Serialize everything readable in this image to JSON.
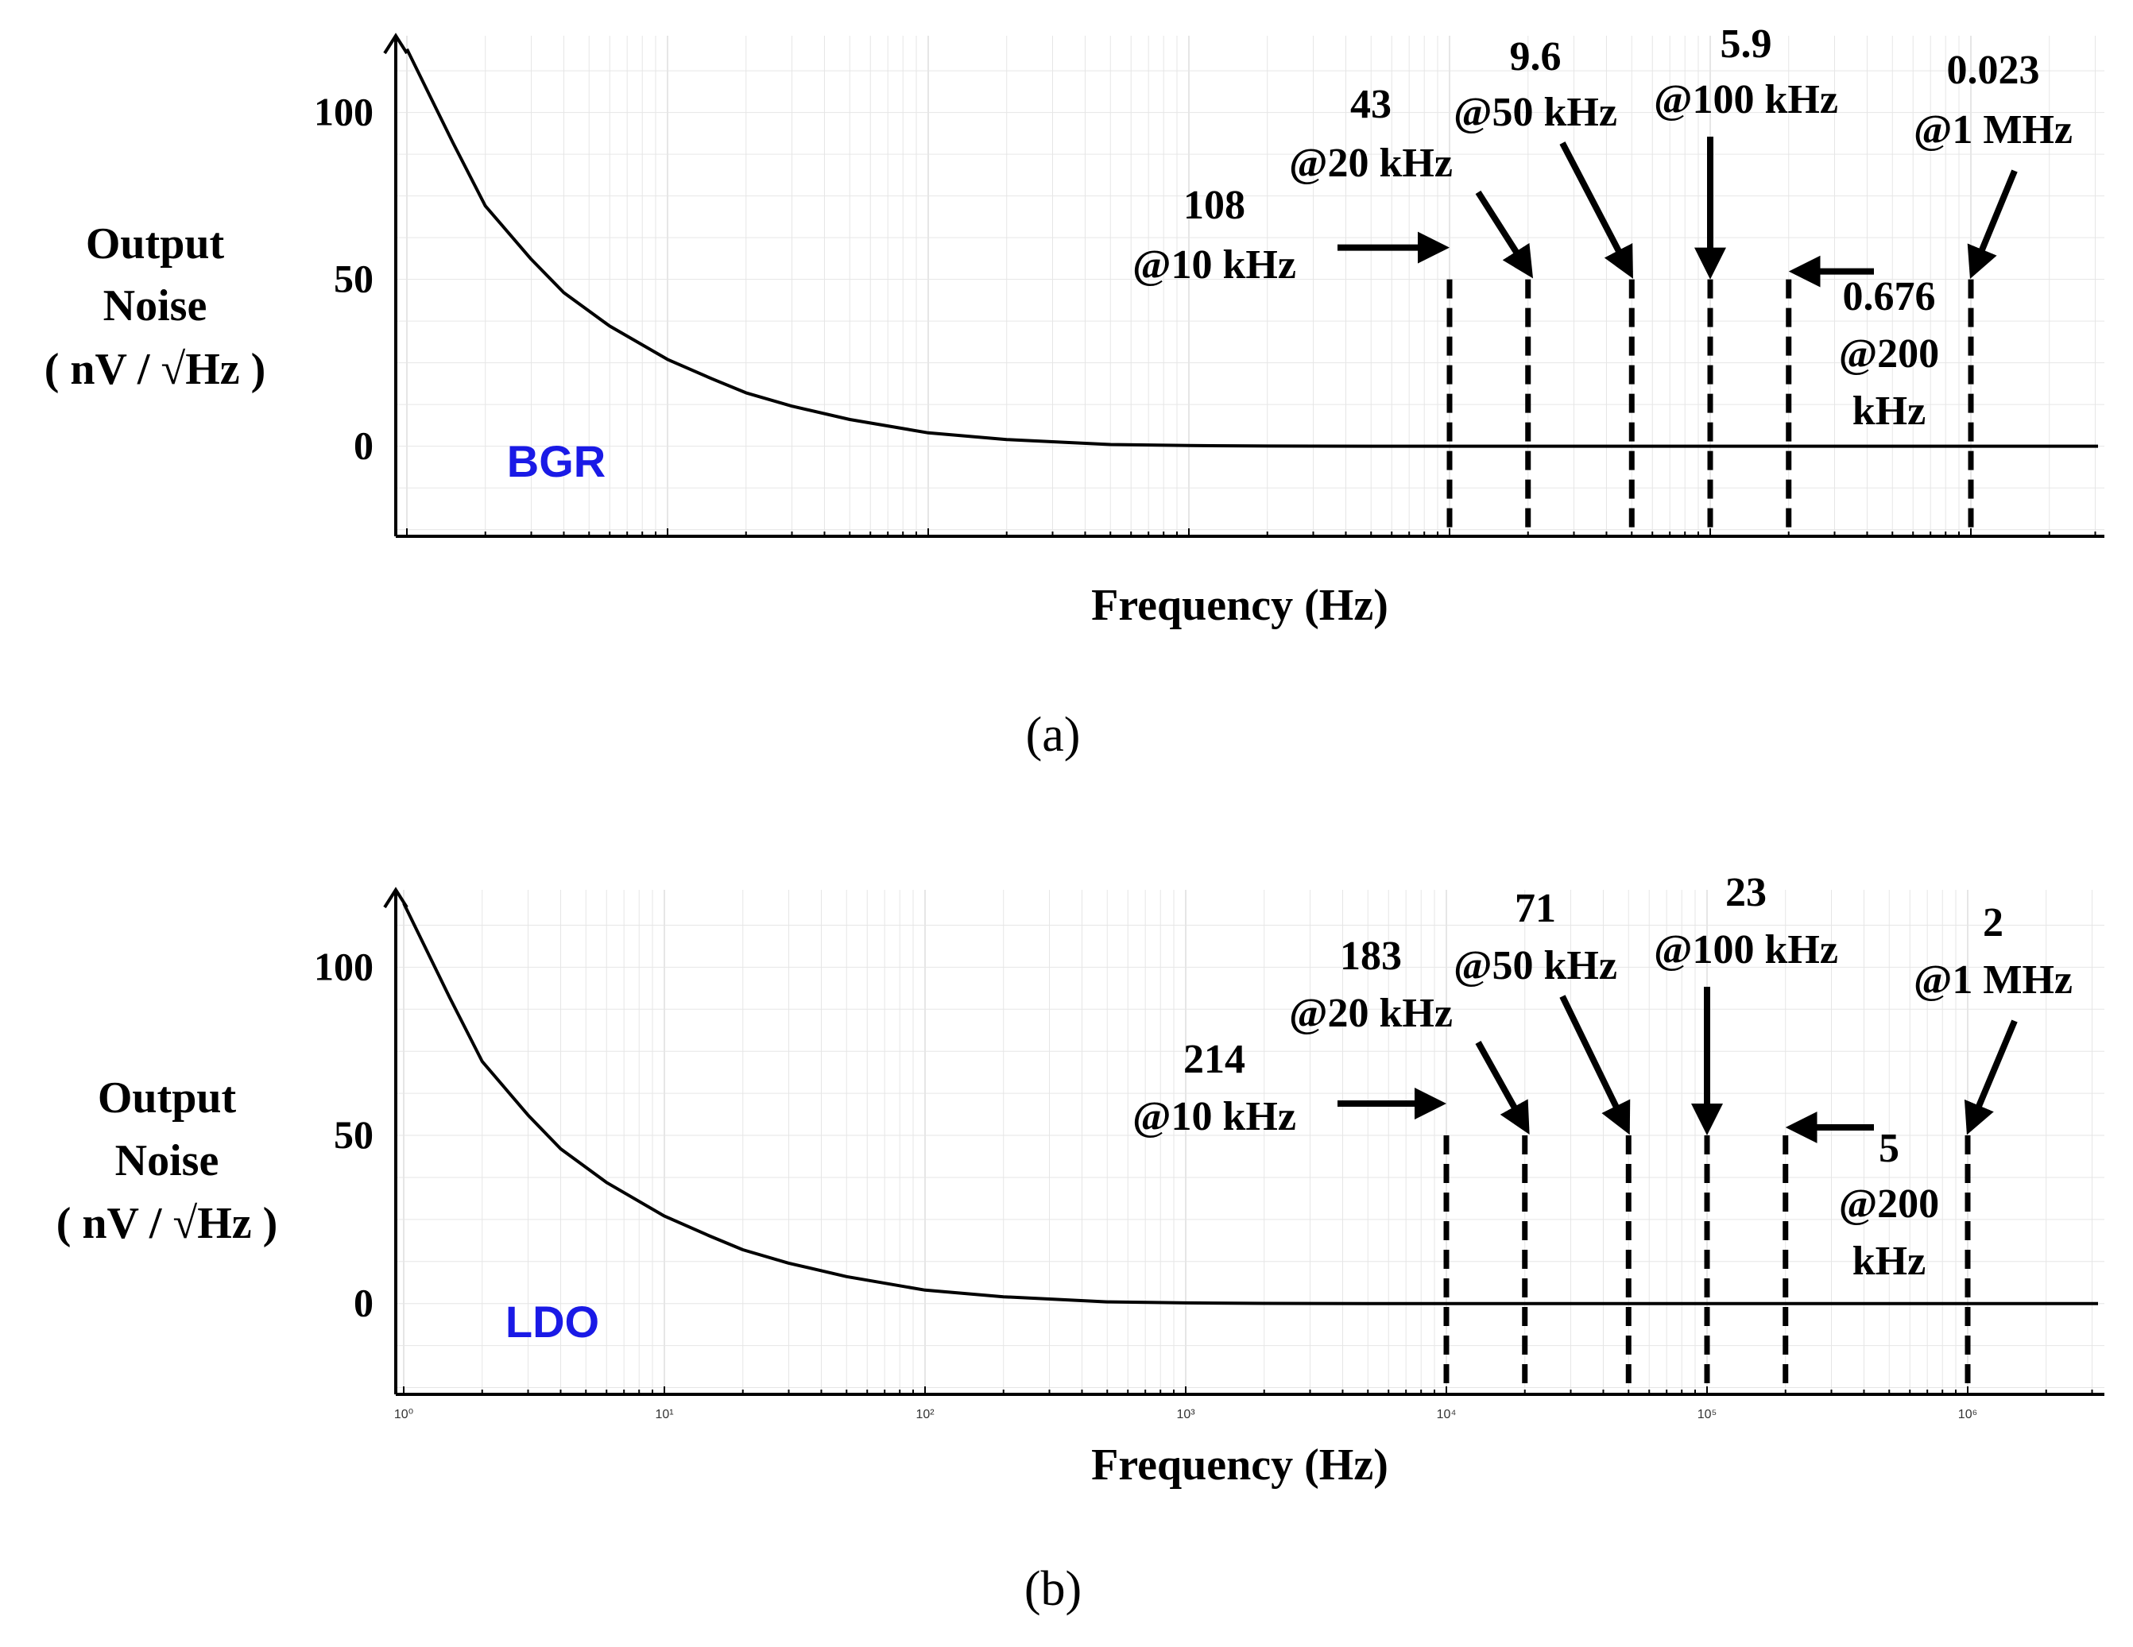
{
  "chart_data": [
    {
      "type": "line",
      "panel_label": "(a)",
      "badge": "BGR",
      "xlabel": "Frequency (Hz)",
      "ylabel_lines": [
        "Output",
        "Noise",
        "( nV / √Hz )"
      ],
      "x_scale": "log",
      "xlim": [
        1,
        10000000
      ],
      "ylim": [
        -27,
        123
      ],
      "yticks": [
        0,
        50,
        100
      ],
      "x_tick_labels": [],
      "grid": true,
      "series": [
        {
          "x": [
            1,
            1.5,
            2,
            3,
            4,
            6,
            10,
            15,
            20,
            30,
            50,
            100,
            200,
            500,
            1000,
            2000,
            5000,
            10000,
            10000000
          ],
          "y": [
            119,
            91,
            72,
            56,
            46,
            36,
            26,
            20,
            16,
            12,
            8,
            4,
            2,
            0.5,
            0.2,
            0.05,
            0.01,
            0,
            0
          ]
        }
      ],
      "markers": [
        {
          "freq": 10000,
          "value_label": "108",
          "freq_label": "@10 kHz"
        },
        {
          "freq": 20000,
          "value_label": "43",
          "freq_label": "@20 kHz"
        },
        {
          "freq": 50000,
          "value_label": "9.6",
          "freq_label": "@50 kHz"
        },
        {
          "freq": 100000,
          "value_label": "5.9",
          "freq_label": "@100 kHz"
        },
        {
          "freq": 200000,
          "value_label": "0.676",
          "freq_label": "@200",
          "freq_label_2": "kHz"
        },
        {
          "freq": 1000000,
          "value_label": "0.023",
          "freq_label": "@1 MHz"
        }
      ]
    },
    {
      "type": "line",
      "panel_label": "(b)",
      "badge": "LDO",
      "xlabel": "Frequency (Hz)",
      "ylabel_lines": [
        "Output",
        "Noise",
        "( nV / √Hz )"
      ],
      "x_scale": "log",
      "xlim": [
        1,
        10000000
      ],
      "ylim": [
        -27,
        123
      ],
      "yticks": [
        0,
        50,
        100
      ],
      "x_tick_labels": [
        "10⁰",
        "10¹",
        "10²",
        "10³",
        "10⁴",
        "10⁵",
        "10⁶"
      ],
      "grid": true,
      "series": [
        {
          "x": [
            1,
            1.5,
            2,
            3,
            4,
            6,
            10,
            15,
            20,
            30,
            50,
            100,
            200,
            500,
            1000,
            2000,
            5000,
            10000,
            10000000
          ],
          "y": [
            119,
            91,
            72,
            56,
            46,
            36,
            26,
            20,
            16,
            12,
            8,
            4,
            2,
            0.5,
            0.2,
            0.05,
            0.01,
            0,
            0
          ]
        }
      ],
      "markers": [
        {
          "freq": 10000,
          "value_label": "214",
          "freq_label": "@10 kHz"
        },
        {
          "freq": 20000,
          "value_label": "183",
          "freq_label": "@20 kHz"
        },
        {
          "freq": 50000,
          "value_label": "71",
          "freq_label": "@50 kHz"
        },
        {
          "freq": 100000,
          "value_label": "23",
          "freq_label": "@100 kHz"
        },
        {
          "freq": 200000,
          "value_label": "5",
          "freq_label": "@200",
          "freq_label_2": "kHz"
        },
        {
          "freq": 1000000,
          "value_label": "2",
          "freq_label": "@1 MHz"
        }
      ]
    }
  ],
  "colors": {
    "badge": "#1a1ae6",
    "curve": "#000000",
    "grid": "#e6e6e6"
  }
}
